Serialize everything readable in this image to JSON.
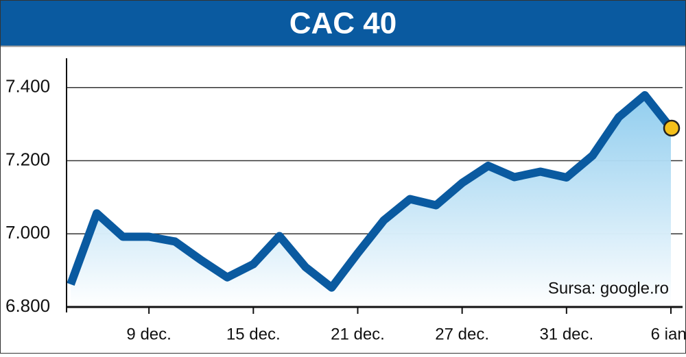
{
  "chart_data": {
    "type": "line",
    "title": "CAC 40",
    "source": "Sursa: google.ro",
    "categories": [
      null,
      null,
      null,
      "9 dec.",
      null,
      null,
      null,
      "15 dec.",
      null,
      null,
      null,
      "21 dec.",
      null,
      null,
      null,
      "27 dec.",
      null,
      null,
      null,
      "31 dec.",
      null,
      null,
      null,
      "6 ian."
    ],
    "values": [
      6862,
      7056,
      6992,
      6992,
      6979,
      6928,
      6881,
      6917,
      6994,
      6909,
      6853,
      6947,
      7037,
      7095,
      7078,
      7139,
      7186,
      7155,
      7170,
      7154,
      7214,
      7319,
      7379,
      7289
    ],
    "color": "#0a5aa0",
    "fill_color": "#8ccbee",
    "marker_color": "#f5c01a",
    "ylim": [
      6800,
      7480
    ],
    "yticks": [
      {
        "value": 6800,
        "label": "6.800"
      },
      {
        "value": 7000,
        "label": "7.000"
      },
      {
        "value": 7200,
        "label": "7.200"
      },
      {
        "value": 7400,
        "label": "7.400"
      }
    ],
    "grid": true
  }
}
